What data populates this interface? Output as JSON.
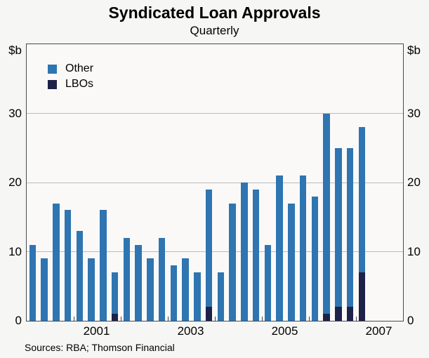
{
  "title": "Syndicated Loan Approvals",
  "subtitle": "Quarterly",
  "axes": {
    "unit_left": "$b",
    "unit_right": "$b"
  },
  "legend": [
    {
      "label": "Other",
      "color": "#2e75b1"
    },
    {
      "label": "LBOs",
      "color": "#1e2148"
    }
  ],
  "source": "Sources: RBA; Thomson Financial",
  "colors": {
    "other_bar": "#2e75b1",
    "lbo_bar": "#1e2148",
    "gridline": "#bcbcbc",
    "axis_border": "#4a4a4a",
    "background": "#f6f6f4"
  },
  "chart_data": {
    "type": "bar",
    "stacked": true,
    "title": "Syndicated Loan Approvals",
    "subtitle": "Quarterly",
    "ylabel": "$b",
    "ylim": [
      0,
      40
    ],
    "yticks": [
      0,
      10,
      20,
      30
    ],
    "grid": true,
    "legend_position": "top-left-inside",
    "x_start_year": 2000,
    "x_end_year": 2008,
    "xtick_labels": [
      2001,
      2003,
      2005,
      2007
    ],
    "year_boundary_ticks": [
      2001,
      2002,
      2003,
      2004,
      2005,
      2006,
      2007
    ],
    "categories": [
      "2000 Q1",
      "2000 Q2",
      "2000 Q3",
      "2000 Q4",
      "2001 Q1",
      "2001 Q2",
      "2001 Q3",
      "2001 Q4",
      "2002 Q1",
      "2002 Q2",
      "2002 Q3",
      "2002 Q4",
      "2003 Q1",
      "2003 Q2",
      "2003 Q3",
      "2003 Q4",
      "2004 Q1",
      "2004 Q2",
      "2004 Q3",
      "2004 Q4",
      "2005 Q1",
      "2005 Q2",
      "2005 Q3",
      "2005 Q4",
      "2006 Q1",
      "2006 Q2",
      "2006 Q3",
      "2006 Q4",
      "2007 Q1"
    ],
    "series": [
      {
        "name": "Other",
        "color": "#2e75b1",
        "values": [
          11,
          9,
          17,
          16,
          13,
          9,
          16,
          6,
          12,
          11,
          9,
          12,
          8,
          9,
          7,
          17,
          7,
          17,
          20,
          19,
          11,
          21,
          17,
          21,
          18,
          29,
          23,
          23,
          21
        ]
      },
      {
        "name": "LBOs",
        "color": "#1e2148",
        "values": [
          0,
          0,
          0,
          0,
          0,
          0,
          0,
          1,
          0,
          0,
          0,
          0,
          0,
          0,
          0,
          2,
          0,
          0,
          0,
          0,
          0,
          0,
          0,
          0,
          0,
          1,
          2,
          2,
          7
        ]
      }
    ],
    "totals": [
      11,
      9,
      17,
      16,
      13,
      9,
      16,
      7,
      12,
      11,
      9,
      12,
      8,
      9,
      7,
      19,
      7,
      17,
      20,
      19,
      11,
      21,
      17,
      21,
      18,
      30,
      25,
      25,
      28
    ]
  }
}
